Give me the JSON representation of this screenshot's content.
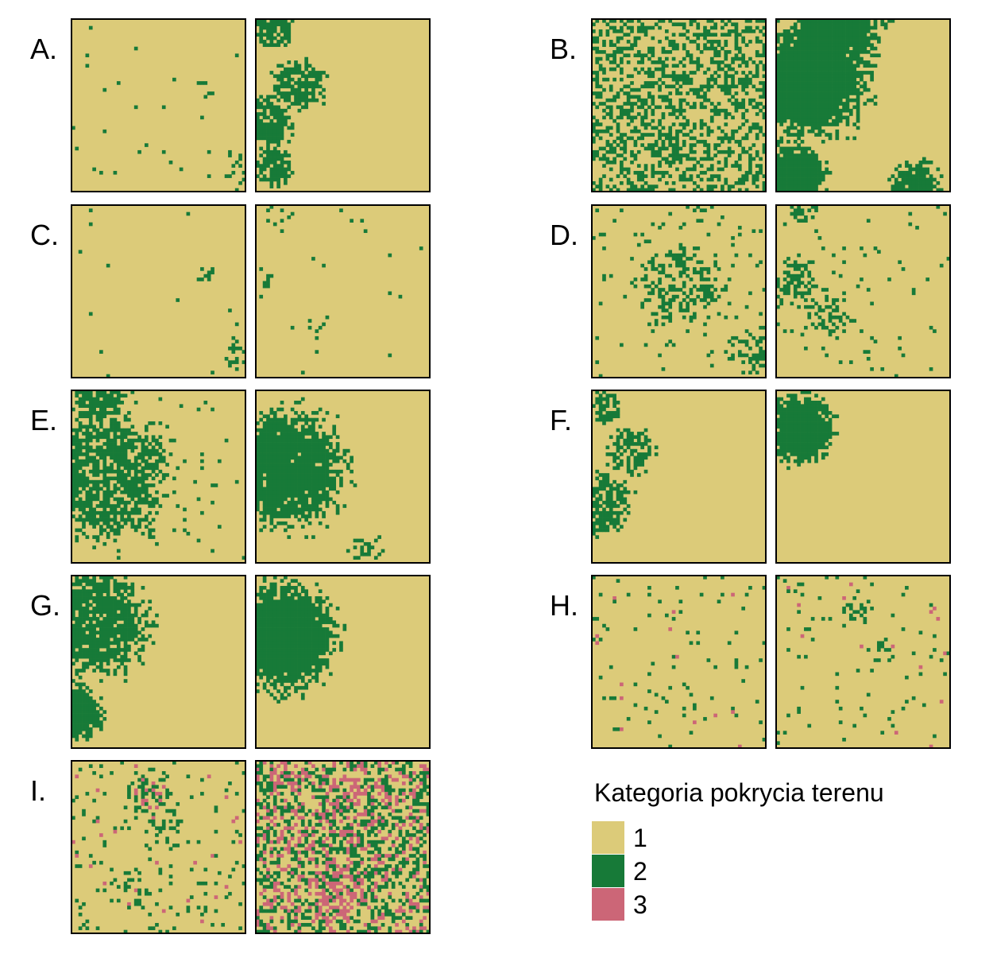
{
  "panels": [
    {
      "label": "A."
    },
    {
      "label": "B."
    },
    {
      "label": "C."
    },
    {
      "label": "D."
    },
    {
      "label": "E."
    },
    {
      "label": "F."
    },
    {
      "label": "G."
    },
    {
      "label": "H."
    },
    {
      "label": "I."
    }
  ],
  "legend": {
    "title": "Kategoria pokrycia terenu",
    "items": [
      {
        "label": "1",
        "color": "#dccb79"
      },
      {
        "label": "2",
        "color": "#177a38"
      },
      {
        "label": "3",
        "color": "#cc6677"
      }
    ]
  }
}
